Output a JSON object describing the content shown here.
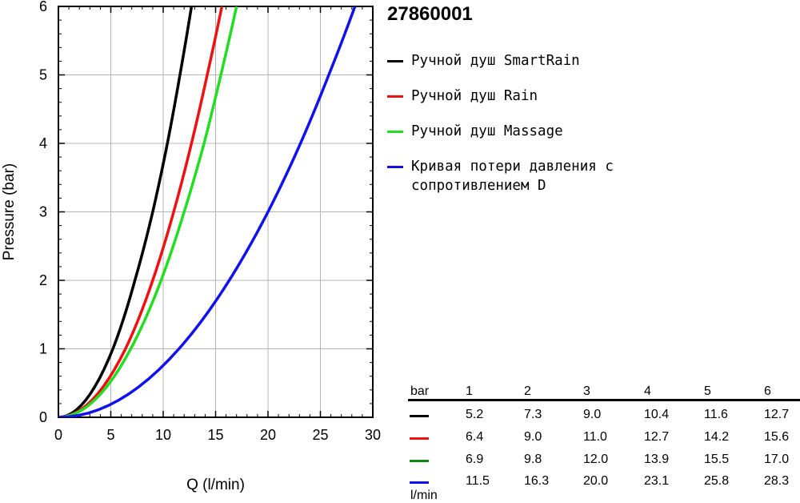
{
  "chart_data": {
    "type": "line",
    "title": "27860001",
    "xlabel": "Q (l/min)",
    "ylabel": "Pressure (bar)",
    "xlim": [
      0,
      30
    ],
    "ylim": [
      0,
      6
    ],
    "xticks": [
      "0",
      "5",
      "10",
      "15",
      "20",
      "25",
      "30"
    ],
    "yticks": [
      "0",
      "1",
      "2",
      "3",
      "4",
      "5",
      "6"
    ],
    "grid": true,
    "legend_position": "right",
    "series": [
      {
        "name": "Ручной душ SmartRain",
        "color": "#000000",
        "flow": [
          0,
          5.2,
          7.3,
          9.0,
          10.4,
          11.6,
          12.7
        ],
        "pressure": [
          0,
          1,
          2,
          3,
          4,
          5,
          6
        ]
      },
      {
        "name": "Ручной душ Rain",
        "color": "#ee1111",
        "flow": [
          0,
          6.4,
          9.0,
          11.0,
          12.7,
          14.2,
          15.6
        ],
        "pressure": [
          0,
          1,
          2,
          3,
          4,
          5,
          6
        ]
      },
      {
        "name": "Ручной душ Massage",
        "color": "#22dd22",
        "flow": [
          0,
          6.9,
          9.8,
          12.0,
          13.9,
          15.5,
          17.0
        ],
        "pressure": [
          0,
          1,
          2,
          3,
          4,
          5,
          6
        ]
      },
      {
        "name": "Кривая потери давления с сопротивлением D",
        "color": "#1111ee",
        "flow": [
          0,
          11.5,
          16.3,
          20.0,
          23.1,
          25.8,
          28.3
        ],
        "pressure": [
          0,
          1,
          2,
          3,
          4,
          5,
          6
        ]
      }
    ]
  },
  "legend_items": [
    {
      "line1": "Ручной душ SmartRain",
      "line2": ""
    },
    {
      "line1": "Ручной душ Rain",
      "line2": ""
    },
    {
      "line1": "Ручной душ Massage",
      "line2": ""
    },
    {
      "line1": "Кривая потери давления с",
      "line2": "сопротивлением D"
    }
  ],
  "table": {
    "header_label": "bar",
    "pressures": [
      "1",
      "2",
      "3",
      "4",
      "5",
      "6"
    ],
    "rows": [
      {
        "color": "#000000",
        "values": [
          "5.2",
          "7.3",
          "9.0",
          "10.4",
          "11.6",
          "12.7"
        ]
      },
      {
        "color": "#ee1111",
        "values": [
          "6.4",
          "9.0",
          "11.0",
          "12.7",
          "14.2",
          "15.6"
        ]
      },
      {
        "color": "#118811",
        "values": [
          "6.9",
          "9.8",
          "12.0",
          "13.9",
          "15.5",
          "17.0"
        ]
      },
      {
        "color": "#1111ee",
        "values": [
          "11.5",
          "16.3",
          "20.0",
          "23.1",
          "25.8",
          "28.3"
        ]
      }
    ],
    "unit_label": "l/min"
  }
}
